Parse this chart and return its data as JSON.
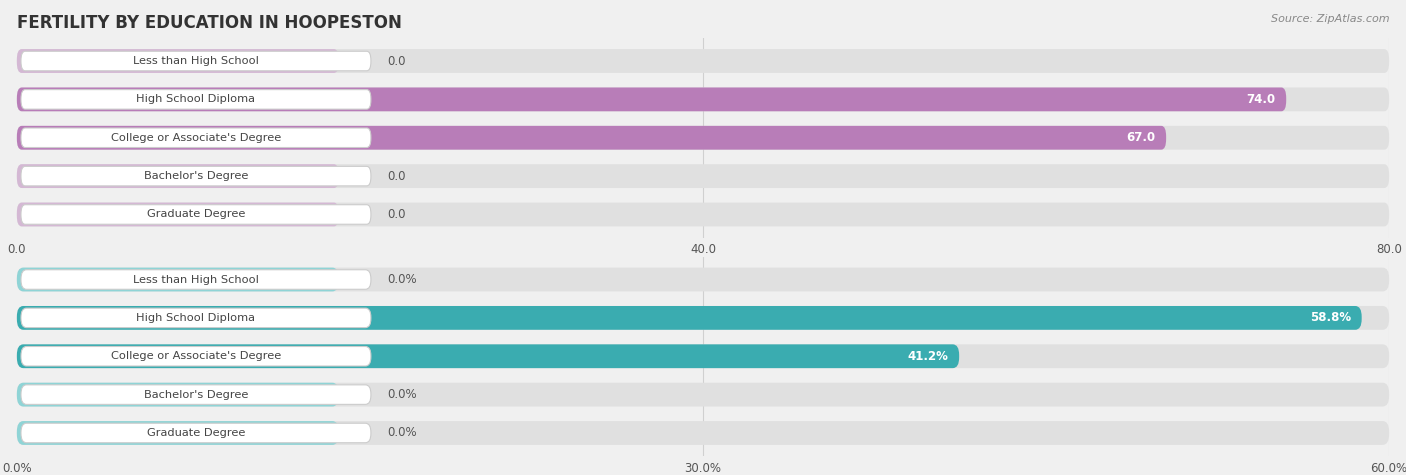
{
  "title": "FERTILITY BY EDUCATION IN HOOPESTON",
  "source": "Source: ZipAtlas.com",
  "top_chart": {
    "categories": [
      "Less than High School",
      "High School Diploma",
      "College or Associate's Degree",
      "Bachelor's Degree",
      "Graduate Degree"
    ],
    "values": [
      0.0,
      74.0,
      67.0,
      0.0,
      0.0
    ],
    "bar_color_active": "#b87db8",
    "bar_color_zero": "#d4b8d4",
    "tick_labels": [
      "0.0",
      "40.0",
      "80.0"
    ],
    "tick_values": [
      0.0,
      40.0,
      80.0
    ],
    "xmax": 80.0,
    "value_suffix": ""
  },
  "bottom_chart": {
    "categories": [
      "Less than High School",
      "High School Diploma",
      "College or Associate's Degree",
      "Bachelor's Degree",
      "Graduate Degree"
    ],
    "values": [
      0.0,
      58.8,
      41.2,
      0.0,
      0.0
    ],
    "bar_color_active": "#3aacb0",
    "bar_color_zero": "#8fd4d6",
    "tick_labels": [
      "0.0%",
      "30.0%",
      "60.0%"
    ],
    "tick_values": [
      0.0,
      30.0,
      60.0
    ],
    "xmax": 60.0,
    "value_suffix": "%"
  },
  "bg_color": "#f0f0f0",
  "bar_bg_color": "#e0e0e0",
  "label_text_color": "#444444",
  "title_color": "#333333",
  "source_color": "#888888",
  "grid_color": "#d0d0d0",
  "label_box_color": "#ffffff",
  "label_box_edge": "#cccccc",
  "value_inside_color": "#ffffff",
  "value_outside_color": "#555555"
}
